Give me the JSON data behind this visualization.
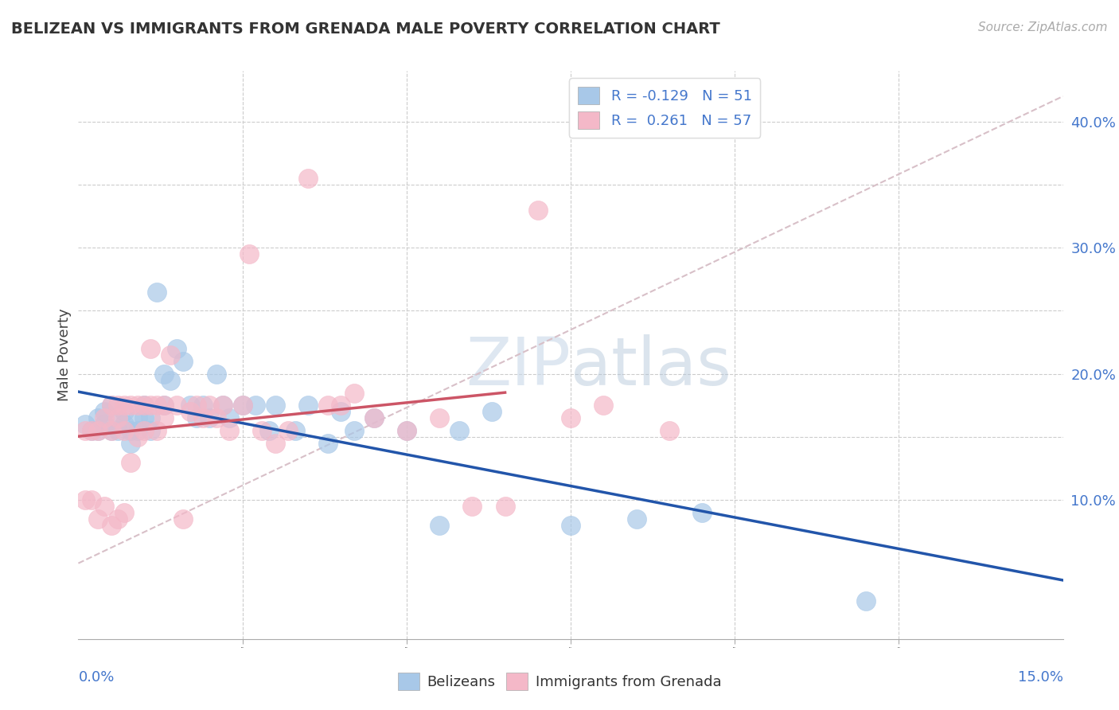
{
  "title": "BELIZEAN VS IMMIGRANTS FROM GRENADA MALE POVERTY CORRELATION CHART",
  "source": "Source: ZipAtlas.com",
  "ylabel": "Male Poverty",
  "right_yticks": [
    "40.0%",
    "30.0%",
    "20.0%",
    "10.0%"
  ],
  "right_ytick_vals": [
    0.4,
    0.3,
    0.2,
    0.1
  ],
  "xlim": [
    0.0,
    0.15
  ],
  "ylim": [
    -0.01,
    0.44
  ],
  "blue_R": -0.129,
  "blue_N": 51,
  "pink_R": 0.261,
  "pink_N": 57,
  "blue_color": "#a8c8e8",
  "pink_color": "#f4b8c8",
  "blue_line_color": "#2255aa",
  "pink_line_color": "#cc5566",
  "diag_line_color": "#d8c0c8",
  "blue_scatter_x": [
    0.001,
    0.002,
    0.003,
    0.003,
    0.004,
    0.004,
    0.005,
    0.005,
    0.006,
    0.006,
    0.007,
    0.007,
    0.008,
    0.008,
    0.009,
    0.009,
    0.01,
    0.01,
    0.011,
    0.011,
    0.012,
    0.013,
    0.013,
    0.014,
    0.015,
    0.016,
    0.017,
    0.018,
    0.019,
    0.02,
    0.021,
    0.022,
    0.023,
    0.025,
    0.027,
    0.029,
    0.03,
    0.033,
    0.035,
    0.038,
    0.04,
    0.042,
    0.045,
    0.05,
    0.055,
    0.058,
    0.063,
    0.075,
    0.085,
    0.095,
    0.12
  ],
  "blue_scatter_y": [
    0.16,
    0.155,
    0.165,
    0.155,
    0.17,
    0.16,
    0.175,
    0.155,
    0.165,
    0.155,
    0.17,
    0.16,
    0.155,
    0.145,
    0.165,
    0.155,
    0.175,
    0.165,
    0.165,
    0.155,
    0.265,
    0.175,
    0.2,
    0.195,
    0.22,
    0.21,
    0.175,
    0.165,
    0.175,
    0.165,
    0.2,
    0.175,
    0.165,
    0.175,
    0.175,
    0.155,
    0.175,
    0.155,
    0.175,
    0.145,
    0.17,
    0.155,
    0.165,
    0.155,
    0.08,
    0.155,
    0.17,
    0.08,
    0.085,
    0.09,
    0.02
  ],
  "pink_scatter_x": [
    0.001,
    0.001,
    0.002,
    0.002,
    0.003,
    0.003,
    0.004,
    0.004,
    0.005,
    0.005,
    0.005,
    0.006,
    0.006,
    0.006,
    0.007,
    0.007,
    0.007,
    0.008,
    0.008,
    0.009,
    0.009,
    0.01,
    0.01,
    0.011,
    0.011,
    0.012,
    0.012,
    0.013,
    0.013,
    0.014,
    0.015,
    0.016,
    0.017,
    0.018,
    0.019,
    0.02,
    0.021,
    0.022,
    0.023,
    0.025,
    0.026,
    0.028,
    0.03,
    0.032,
    0.035,
    0.038,
    0.04,
    0.042,
    0.045,
    0.05,
    0.055,
    0.06,
    0.065,
    0.07,
    0.075,
    0.08,
    0.09
  ],
  "pink_scatter_y": [
    0.155,
    0.1,
    0.155,
    0.1,
    0.155,
    0.085,
    0.165,
    0.095,
    0.175,
    0.155,
    0.08,
    0.175,
    0.165,
    0.085,
    0.175,
    0.155,
    0.09,
    0.175,
    0.13,
    0.175,
    0.15,
    0.175,
    0.155,
    0.22,
    0.175,
    0.175,
    0.155,
    0.175,
    0.165,
    0.215,
    0.175,
    0.085,
    0.17,
    0.175,
    0.165,
    0.175,
    0.165,
    0.175,
    0.155,
    0.175,
    0.295,
    0.155,
    0.145,
    0.155,
    0.355,
    0.175,
    0.175,
    0.185,
    0.165,
    0.155,
    0.165,
    0.095,
    0.095,
    0.33,
    0.165,
    0.175,
    0.155
  ]
}
